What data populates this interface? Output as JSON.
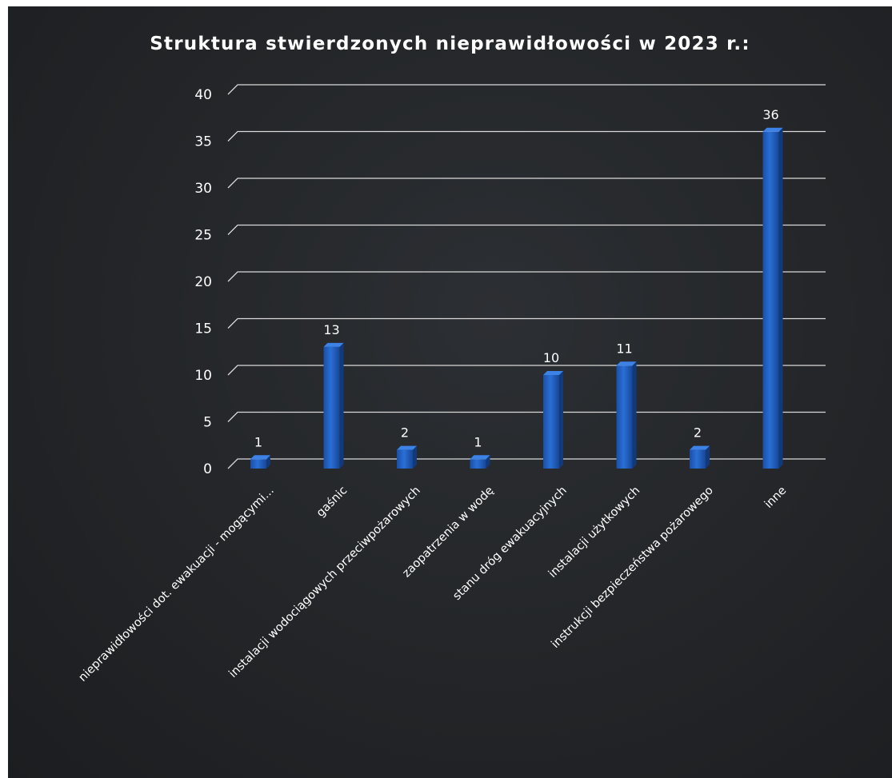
{
  "chart_data": {
    "type": "bar",
    "title": "Struktura stwierdzonych nieprawidłowości w 2023 r.:",
    "categories": [
      "nieprawidłowości dot. ewakuacji - mogącymi...",
      "gaśnic",
      "instalacji wodociągowych przeciwpożarowych",
      "zaopatrzenia w wodę",
      "stanu dróg ewakuacyjnych",
      "instalacji użytkowych",
      "instrukcji bezpieczeństwa pożarowego",
      "inne"
    ],
    "values": [
      1,
      13,
      2,
      1,
      10,
      11,
      2,
      36
    ],
    "ylim": [
      0,
      40
    ],
    "yticks": [
      0,
      5,
      10,
      15,
      20,
      25,
      30,
      35,
      40
    ],
    "xlabel": "",
    "ylabel": "",
    "grid": true,
    "legend": "none",
    "bar_color": "#1f5fc2",
    "background": "#26282b"
  }
}
